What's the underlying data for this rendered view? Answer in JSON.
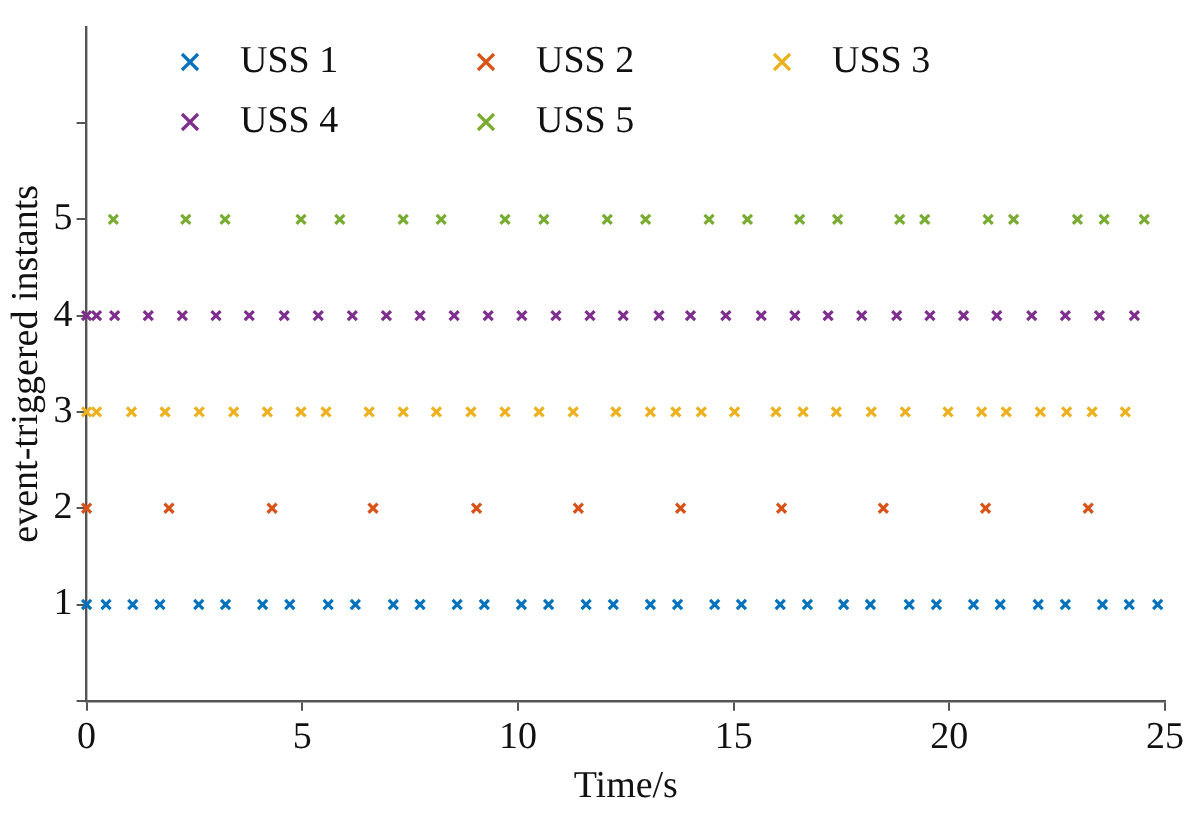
{
  "chart_data": {
    "type": "scatter",
    "xlabel": "Time/s",
    "ylabel": "event-triggered instants",
    "xlim": [
      0,
      25
    ],
    "xticks": [
      0,
      5,
      10,
      15,
      20,
      25
    ],
    "ylim": [
      0,
      7
    ],
    "yticks": [
      {
        "value": 0,
        "label": null
      },
      1,
      2,
      3,
      4,
      5,
      {
        "value": 6,
        "label": null
      }
    ],
    "marker": "cross",
    "legend": "top",
    "grid": false,
    "series": [
      {
        "name": "USS 1",
        "color": "#0072bd",
        "x": [
          0,
          0.45,
          1.07,
          1.7,
          2.6,
          3.22,
          4.08,
          4.71,
          5.6,
          6.23,
          7.11,
          7.73,
          8.59,
          9.22,
          10.08,
          10.71,
          11.58,
          12.21,
          13.07,
          13.7,
          14.56,
          15.18,
          16.08,
          16.71,
          17.55,
          18.17,
          19.07,
          19.7,
          20.56,
          21.18,
          22.06,
          22.69,
          23.55,
          24.17,
          24.83
        ],
        "values": [
          1,
          1,
          1,
          1,
          1,
          1,
          1,
          1,
          1,
          1,
          1,
          1,
          1,
          1,
          1,
          1,
          1,
          1,
          1,
          1,
          1,
          1,
          1,
          1,
          1,
          1,
          1,
          1,
          1,
          1,
          1,
          1,
          1,
          1,
          1
        ]
      },
      {
        "name": "USS 2",
        "color": "#d95319",
        "x": [
          0,
          1.91,
          4.3,
          6.64,
          9.04,
          11.4,
          13.77,
          16.11,
          18.47,
          20.84,
          23.22
        ],
        "values": [
          2,
          2,
          2,
          2,
          2,
          2,
          2,
          2,
          2,
          2,
          2
        ]
      },
      {
        "name": "USS 3",
        "color": "#edb120",
        "x": [
          0,
          0.23,
          1.04,
          1.82,
          2.61,
          3.41,
          4.19,
          4.97,
          5.55,
          6.55,
          7.34,
          8.11,
          8.91,
          9.7,
          10.49,
          11.28,
          12.27,
          13.07,
          13.66,
          14.25,
          15.02,
          15.98,
          16.61,
          17.38,
          18.19,
          18.98,
          19.97,
          20.75,
          21.32,
          22.11,
          22.72,
          23.31,
          24.08
        ],
        "values": [
          3,
          3,
          3,
          3,
          3,
          3,
          3,
          3,
          3,
          3,
          3,
          3,
          3,
          3,
          3,
          3,
          3,
          3,
          3,
          3,
          3,
          3,
          3,
          3,
          3,
          3,
          3,
          3,
          3,
          3,
          3,
          3,
          3
        ]
      },
      {
        "name": "USS 4",
        "color": "#7e2f8e",
        "x": [
          0,
          0.23,
          0.65,
          1.43,
          2.22,
          3.0,
          3.77,
          4.58,
          5.37,
          6.16,
          6.95,
          7.73,
          8.52,
          9.31,
          10.09,
          10.88,
          11.67,
          12.44,
          13.27,
          14.0,
          14.82,
          15.64,
          16.42,
          17.19,
          17.97,
          18.78,
          19.55,
          20.33,
          21.1,
          21.91,
          22.69,
          23.48,
          24.29
        ],
        "values": [
          4,
          4,
          4,
          4,
          4,
          4,
          4,
          4,
          4,
          4,
          4,
          4,
          4,
          4,
          4,
          4,
          4,
          4,
          4,
          4,
          4,
          4,
          4,
          4,
          4,
          4,
          4,
          4,
          4,
          4,
          4,
          4,
          4
        ]
      },
      {
        "name": "USS 5",
        "color": "#77ac30",
        "x": [
          0.62,
          2.3,
          3.21,
          4.97,
          5.87,
          7.34,
          8.22,
          9.7,
          10.6,
          12.07,
          12.96,
          14.43,
          15.32,
          16.53,
          17.41,
          18.85,
          19.43,
          20.9,
          21.49,
          22.97,
          23.59,
          24.52
        ],
        "values": [
          5,
          5,
          5,
          5,
          5,
          5,
          5,
          5,
          5,
          5,
          5,
          5,
          5,
          5,
          5,
          5,
          5,
          5,
          5,
          5,
          5,
          5
        ]
      }
    ]
  }
}
